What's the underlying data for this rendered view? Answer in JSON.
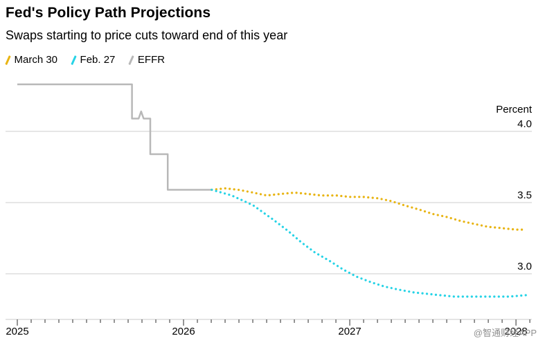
{
  "header": {
    "title": "Fed's Policy Path Projections",
    "subtitle": "Swaps starting to price cuts toward end of this year"
  },
  "legend": [
    {
      "label": "March 30",
      "color": "#e8b413"
    },
    {
      "label": "Feb. 27",
      "color": "#27d3e6"
    },
    {
      "label": "EFFR",
      "color": "#b8b8b8"
    }
  ],
  "watermark": "@智通财经APP",
  "chart_data": {
    "type": "line",
    "title": "Fed's Policy Path Projections",
    "subtitle": "Swaps starting to price cuts toward end of this year",
    "ylabel": "Percent",
    "yticks": [
      4.0,
      3.5,
      3.0
    ],
    "ytick_labels": [
      "4.0",
      "3.5",
      "3.0"
    ],
    "ylim": [
      2.65,
      4.45
    ],
    "xlim": [
      2025.0,
      2028.083
    ],
    "xticks": [
      2025,
      2026,
      2027,
      2028
    ],
    "xtick_labels": [
      "2025",
      "2026",
      "2027",
      "2028"
    ],
    "grid": "horizontal-only",
    "legend_position": "top-left",
    "colors": {
      "gridline": "#cccccc",
      "axis_line": "#c9c9c9",
      "tick": "#2b2b2b",
      "label": "#000000"
    },
    "series": [
      {
        "name": "EFFR",
        "color": "#b8b8b8",
        "line_style": "solid",
        "points": [
          [
            2025.0,
            4.33
          ],
          [
            2025.69,
            4.33
          ],
          [
            2025.69,
            4.09
          ],
          [
            2025.73,
            4.09
          ],
          [
            2025.745,
            4.14
          ],
          [
            2025.76,
            4.09
          ],
          [
            2025.8,
            4.09
          ],
          [
            2025.8,
            3.84
          ],
          [
            2025.905,
            3.84
          ],
          [
            2025.905,
            3.59
          ],
          [
            2026.17,
            3.59
          ]
        ]
      },
      {
        "name": "March 30",
        "color": "#e8b413",
        "line_style": "dotted",
        "points": [
          [
            2026.17,
            3.59
          ],
          [
            2026.25,
            3.6
          ],
          [
            2026.33,
            3.59
          ],
          [
            2026.42,
            3.57
          ],
          [
            2026.5,
            3.55
          ],
          [
            2026.58,
            3.56
          ],
          [
            2026.67,
            3.57
          ],
          [
            2026.75,
            3.56
          ],
          [
            2026.83,
            3.55
          ],
          [
            2026.92,
            3.55
          ],
          [
            2027.0,
            3.54
          ],
          [
            2027.08,
            3.54
          ],
          [
            2027.17,
            3.53
          ],
          [
            2027.25,
            3.51
          ],
          [
            2027.33,
            3.48
          ],
          [
            2027.42,
            3.45
          ],
          [
            2027.5,
            3.42
          ],
          [
            2027.58,
            3.4
          ],
          [
            2027.67,
            3.37
          ],
          [
            2027.75,
            3.35
          ],
          [
            2027.83,
            3.33
          ],
          [
            2027.92,
            3.32
          ],
          [
            2028.0,
            3.31
          ],
          [
            2028.06,
            3.31
          ]
        ]
      },
      {
        "name": "Feb. 27",
        "color": "#27d3e6",
        "line_style": "dotted",
        "points": [
          [
            2026.17,
            3.59
          ],
          [
            2026.29,
            3.55
          ],
          [
            2026.42,
            3.48
          ],
          [
            2026.54,
            3.38
          ],
          [
            2026.63,
            3.3
          ],
          [
            2026.71,
            3.22
          ],
          [
            2026.79,
            3.15
          ],
          [
            2026.88,
            3.09
          ],
          [
            2026.96,
            3.03
          ],
          [
            2027.04,
            2.98
          ],
          [
            2027.13,
            2.94
          ],
          [
            2027.21,
            2.91
          ],
          [
            2027.29,
            2.89
          ],
          [
            2027.38,
            2.87
          ],
          [
            2027.46,
            2.86
          ],
          [
            2027.54,
            2.85
          ],
          [
            2027.63,
            2.84
          ],
          [
            2027.71,
            2.84
          ],
          [
            2027.79,
            2.84
          ],
          [
            2027.88,
            2.84
          ],
          [
            2027.96,
            2.84
          ],
          [
            2028.06,
            2.85
          ]
        ]
      }
    ]
  }
}
